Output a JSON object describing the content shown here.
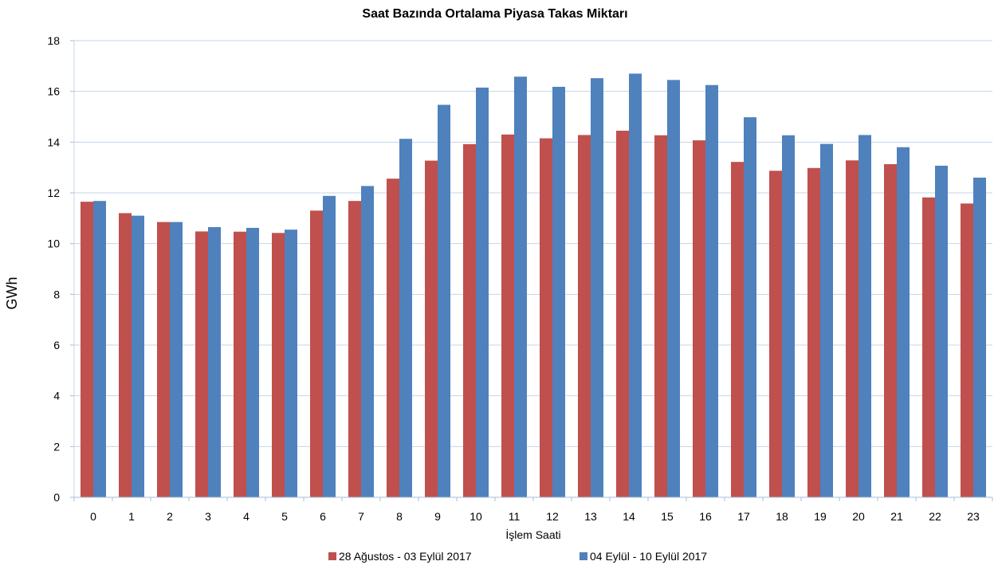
{
  "chart_data": {
    "type": "bar",
    "title": "Saat Bazında Ortalama Piyasa Takas Miktarı",
    "xlabel": "İşlem Saati",
    "ylabel": "GWh",
    "ylim": [
      0,
      18
    ],
    "yticks": [
      0,
      2,
      4,
      6,
      8,
      10,
      12,
      14,
      16,
      18
    ],
    "grid": true,
    "legend_position": "bottom",
    "categories": [
      "0",
      "1",
      "2",
      "3",
      "4",
      "5",
      "6",
      "7",
      "8",
      "9",
      "10",
      "11",
      "12",
      "13",
      "14",
      "15",
      "16",
      "17",
      "18",
      "19",
      "20",
      "21",
      "22",
      "23"
    ],
    "series": [
      {
        "name": "28 Ağustos - 03 Eylül 2017",
        "color": "#C0504D",
        "values": [
          11.65,
          11.2,
          10.85,
          10.48,
          10.47,
          10.42,
          11.3,
          11.68,
          12.56,
          13.27,
          13.92,
          14.3,
          14.15,
          14.28,
          14.45,
          14.27,
          14.07,
          13.22,
          12.87,
          12.98,
          13.28,
          13.13,
          11.82,
          11.58
        ]
      },
      {
        "name": "04 Eylül - 10 Eylül 2017",
        "color": "#4F81BD",
        "values": [
          11.68,
          11.1,
          10.85,
          10.65,
          10.62,
          10.55,
          11.88,
          12.27,
          14.13,
          15.47,
          16.15,
          16.58,
          16.18,
          16.52,
          16.7,
          16.45,
          16.25,
          14.98,
          14.27,
          13.93,
          14.28,
          13.8,
          13.07,
          12.6
        ]
      }
    ]
  }
}
